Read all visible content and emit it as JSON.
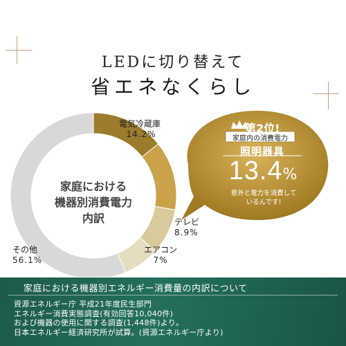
{
  "title_line1": "LEDに切り替えて",
  "title_line2": "省エネなくらし",
  "chart_data": {
    "type": "pie",
    "title": "家庭における機器別消費電力内訳",
    "categories": [
      "電気冷蔵庫",
      "照明器具",
      "テレビ",
      "エアコン",
      "その他"
    ],
    "values": [
      14.2,
      13.4,
      8.9,
      7,
      56.1
    ],
    "value_labels": [
      "14.2%",
      "13.4%",
      "8.9%",
      "7%",
      "56.1%"
    ],
    "colors": [
      "#9c7c2c",
      "#c9a24a",
      "#d8ca9a",
      "#e6dcc0",
      "#d8d8d8"
    ]
  },
  "center_label": {
    "line1": "家庭における",
    "line2": "機器別消費電力",
    "line3": "内訳"
  },
  "callout": {
    "rank": "第2位!",
    "subtitle": "家庭内の消費電力",
    "category": "照明器具",
    "value_main": "13.4",
    "value_unit": "%",
    "note_line1": "意外と電力を消費して",
    "note_line2": "いるんです!",
    "color": "#c9a24a"
  },
  "footer": {
    "title": "家庭における機器別エネルギー消費量の内訳について",
    "body": "資源エネルギー庁 平成21年度民生部門\nエネルギー消費実態調査(有効回答10,040件)\nおよび機器の使用に関する調査(1,448件)より。\n日本エネルギー経済研究所が試算。(資源エネルギー庁より)"
  }
}
